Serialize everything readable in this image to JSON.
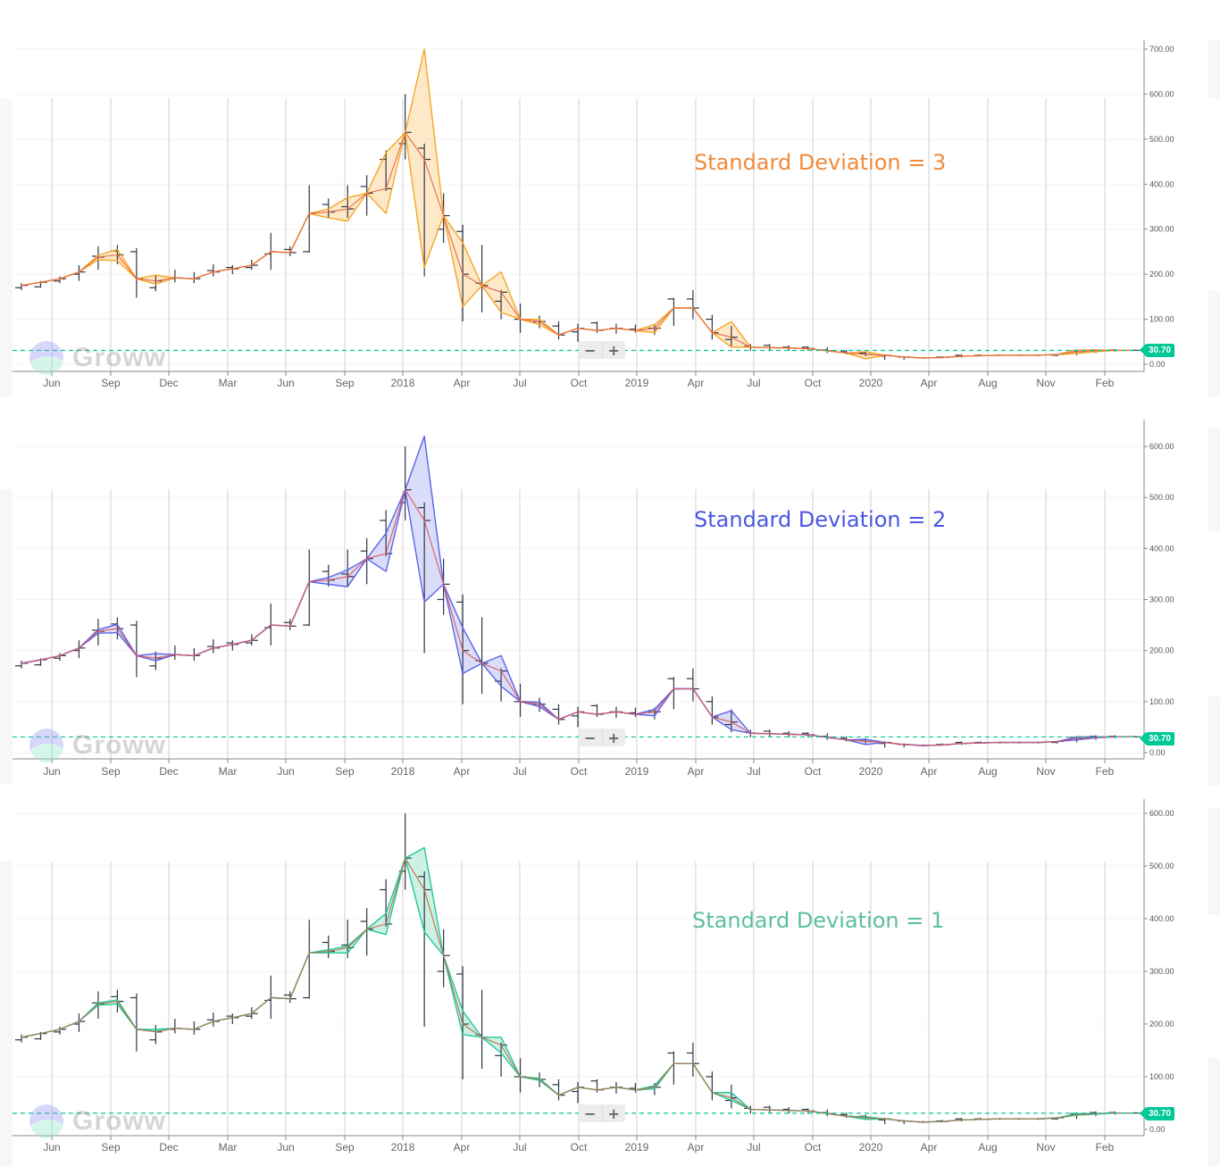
{
  "months_axis": [
    "Jun",
    "Sep",
    "Dec",
    "Mar",
    "Jun",
    "Sep",
    "2018",
    "Apr",
    "Jul",
    "Oct",
    "2019",
    "Apr",
    "Jul",
    "Oct",
    "2020",
    "Apr",
    "Aug",
    "Nov",
    "Feb"
  ],
  "watermark": "Groww",
  "zoom_controls": {
    "minus": "−",
    "plus": "+"
  },
  "current_price_label": "30.70",
  "colors": {
    "sd3": "#f5a623",
    "sd3_fill": "#fde7c2",
    "sd3_mid": "#e8684a",
    "sd3_text": "#f08a3a",
    "sd2": "#5a63e8",
    "sd2_fill": "#d6d9fa",
    "sd2_mid": "#e05a5a",
    "sd2_text": "#4a56e2",
    "sd1": "#1fc99a",
    "sd1_fill": "#c8f0e1",
    "sd1_mid": "#c0704a",
    "sd1_text": "#5cbf9c",
    "price_line": "#00c896",
    "ohlc": "#2f3445"
  },
  "panels": [
    {
      "label": "Standard Deviation = 3",
      "y_ticks": [
        "700.00",
        "600.00",
        "500.00",
        "400.00",
        "300.00",
        "200.00",
        "100.00",
        "0.00"
      ]
    },
    {
      "label": "Standard Deviation = 2",
      "y_ticks": [
        "600.00",
        "500.00",
        "400.00",
        "300.00",
        "200.00",
        "100.00",
        "0.00"
      ]
    },
    {
      "label": "Standard Deviation = 1",
      "y_ticks": [
        "600.00",
        "500.00",
        "400.00",
        "300.00",
        "200.00",
        "100.00",
        "0.00"
      ]
    }
  ],
  "chart_data": [
    {
      "type": "line",
      "title": "Standard Deviation = 3",
      "subtype": "bollinger-bands over monthly OHLC bars",
      "x": [
        "2016-05",
        "2016-06",
        "2016-07",
        "2016-08",
        "2016-09",
        "2016-10",
        "2016-11",
        "2016-12",
        "2017-01",
        "2017-02",
        "2017-03",
        "2017-04",
        "2017-05",
        "2017-06",
        "2017-07",
        "2017-08",
        "2017-09",
        "2017-10",
        "2017-11",
        "2017-12",
        "2018-01",
        "2018-02",
        "2018-03",
        "2018-04",
        "2018-05",
        "2018-06",
        "2018-07",
        "2018-08",
        "2018-09",
        "2018-10",
        "2018-11",
        "2018-12",
        "2019-01",
        "2019-02",
        "2019-03",
        "2019-04",
        "2019-05",
        "2019-06",
        "2019-07",
        "2019-08",
        "2019-09",
        "2019-10",
        "2019-11",
        "2019-12",
        "2020-01",
        "2020-02",
        "2020-03",
        "2020-04",
        "2020-05",
        "2020-06",
        "2020-07",
        "2020-08",
        "2020-09",
        "2020-10",
        "2020-11",
        "2020-12",
        "2021-01",
        "2021-02",
        "2021-03"
      ],
      "series": [
        {
          "name": "Middle (SMA)",
          "values": [
            175,
            182,
            190,
            205,
            238,
            243,
            190,
            185,
            192,
            190,
            205,
            212,
            220,
            250,
            248,
            335,
            338,
            345,
            380,
            390,
            515,
            455,
            330,
            200,
            175,
            160,
            100,
            95,
            65,
            80,
            75,
            80,
            75,
            80,
            125,
            125,
            70,
            60,
            38,
            37,
            36,
            35,
            30,
            25,
            22,
            20,
            16,
            14,
            15,
            18,
            19,
            20,
            20,
            20,
            22,
            28,
            30,
            31,
            31
          ]
        },
        {
          "name": "Upper Band",
          "values": [
            175,
            182,
            190,
            205,
            242,
            255,
            190,
            198,
            192,
            190,
            205,
            212,
            220,
            250,
            248,
            335,
            345,
            370,
            380,
            470,
            515,
            700,
            330,
            270,
            175,
            205,
            100,
            100,
            65,
            80,
            75,
            80,
            75,
            88,
            125,
            125,
            70,
            95,
            38,
            37,
            36,
            35,
            30,
            25,
            28,
            20,
            16,
            14,
            15,
            18,
            19,
            20,
            20,
            20,
            22,
            32,
            32,
            31,
            31
          ]
        },
        {
          "name": "Lower Band",
          "values": [
            175,
            182,
            190,
            205,
            232,
            230,
            190,
            178,
            192,
            190,
            205,
            212,
            220,
            250,
            248,
            335,
            325,
            318,
            380,
            335,
            515,
            215,
            330,
            128,
            175,
            115,
            100,
            88,
            65,
            80,
            75,
            80,
            75,
            70,
            125,
            125,
            70,
            38,
            38,
            37,
            36,
            35,
            30,
            25,
            12,
            20,
            16,
            14,
            15,
            18,
            19,
            20,
            20,
            20,
            22,
            24,
            28,
            31,
            31
          ]
        }
      ],
      "current_price": 30.7,
      "xlabel": "",
      "ylabel": "",
      "ylim": [
        0,
        700
      ],
      "grid": true,
      "legend": "none"
    },
    {
      "type": "line",
      "title": "Standard Deviation = 2",
      "subtype": "bollinger-bands over monthly OHLC bars",
      "x": "same as panel 1",
      "series": [
        {
          "name": "Middle (SMA)",
          "values": [
            175,
            182,
            190,
            205,
            238,
            243,
            190,
            185,
            192,
            190,
            205,
            212,
            220,
            250,
            248,
            335,
            338,
            345,
            380,
            390,
            515,
            455,
            330,
            200,
            175,
            160,
            100,
            95,
            65,
            80,
            75,
            80,
            75,
            80,
            125,
            125,
            70,
            60,
            38,
            37,
            36,
            35,
            30,
            25,
            22,
            20,
            16,
            14,
            15,
            18,
            19,
            20,
            20,
            20,
            22,
            28,
            30,
            31,
            31
          ]
        },
        {
          "name": "Upper Band",
          "values": [
            175,
            182,
            190,
            205,
            241,
            251,
            190,
            194,
            192,
            190,
            205,
            212,
            220,
            250,
            248,
            335,
            343,
            358,
            380,
            430,
            515,
            620,
            330,
            245,
            175,
            190,
            100,
            99,
            65,
            80,
            75,
            80,
            75,
            85,
            125,
            125,
            70,
            82,
            38,
            37,
            36,
            35,
            30,
            25,
            26,
            20,
            16,
            14,
            15,
            18,
            19,
            20,
            20,
            20,
            22,
            31,
            31,
            31,
            31
          ]
        },
        {
          "name": "Lower Band",
          "values": [
            175,
            182,
            190,
            205,
            234,
            235,
            190,
            180,
            192,
            190,
            205,
            212,
            220,
            250,
            248,
            335,
            330,
            325,
            380,
            355,
            515,
            295,
            330,
            155,
            175,
            130,
            100,
            90,
            65,
            80,
            75,
            80,
            75,
            72,
            125,
            125,
            70,
            45,
            38,
            37,
            36,
            35,
            30,
            25,
            16,
            20,
            16,
            14,
            15,
            18,
            19,
            20,
            20,
            20,
            22,
            25,
            29,
            31,
            31
          ]
        }
      ],
      "current_price": 30.7,
      "xlabel": "",
      "ylabel": "",
      "ylim": [
        0,
        600
      ],
      "grid": true,
      "legend": "none"
    },
    {
      "type": "line",
      "title": "Standard Deviation = 1",
      "subtype": "bollinger-bands over monthly OHLC bars",
      "x": "same as panel 1",
      "series": [
        {
          "name": "Middle (SMA)",
          "values": [
            175,
            182,
            190,
            205,
            238,
            243,
            190,
            185,
            192,
            190,
            205,
            212,
            220,
            250,
            248,
            335,
            338,
            345,
            380,
            390,
            515,
            455,
            330,
            200,
            175,
            160,
            100,
            95,
            65,
            80,
            75,
            80,
            75,
            80,
            125,
            125,
            70,
            60,
            38,
            37,
            36,
            35,
            30,
            25,
            22,
            20,
            16,
            14,
            15,
            18,
            19,
            20,
            20,
            20,
            22,
            28,
            30,
            31,
            31
          ]
        },
        {
          "name": "Upper Band",
          "values": [
            175,
            182,
            190,
            205,
            240,
            246,
            190,
            190,
            192,
            190,
            205,
            212,
            220,
            250,
            248,
            335,
            341,
            348,
            380,
            410,
            515,
            535,
            330,
            225,
            175,
            175,
            100,
            97,
            65,
            80,
            75,
            80,
            75,
            83,
            125,
            125,
            70,
            70,
            38,
            37,
            36,
            35,
            30,
            25,
            24,
            20,
            16,
            14,
            15,
            18,
            19,
            20,
            20,
            20,
            22,
            30,
            30,
            31,
            31
          ]
        },
        {
          "name": "Lower Band",
          "values": [
            175,
            182,
            190,
            205,
            236,
            238,
            190,
            186,
            192,
            190,
            205,
            212,
            220,
            250,
            248,
            335,
            335,
            335,
            380,
            370,
            515,
            375,
            330,
            180,
            175,
            145,
            100,
            93,
            65,
            80,
            75,
            80,
            75,
            77,
            125,
            125,
            70,
            55,
            38,
            37,
            36,
            35,
            30,
            25,
            19,
            20,
            16,
            14,
            15,
            18,
            19,
            20,
            20,
            20,
            22,
            27,
            29,
            31,
            31
          ]
        }
      ],
      "current_price": 30.7,
      "xlabel": "",
      "ylabel": "",
      "ylim": [
        0,
        600
      ],
      "grid": true,
      "legend": "none"
    }
  ],
  "ohlc": [
    [
      180,
      165,
      170,
      175
    ],
    [
      185,
      170,
      172,
      182
    ],
    [
      195,
      180,
      185,
      190
    ],
    [
      220,
      185,
      200,
      205
    ],
    [
      262,
      210,
      240,
      238
    ],
    [
      265,
      222,
      252,
      243
    ],
    [
      258,
      148,
      250,
      190
    ],
    [
      198,
      162,
      170,
      185
    ],
    [
      210,
      182,
      190,
      192
    ],
    [
      205,
      180,
      190,
      190
    ],
    [
      222,
      195,
      208,
      205
    ],
    [
      220,
      200,
      215,
      212
    ],
    [
      232,
      210,
      215,
      220
    ],
    [
      292,
      210,
      245,
      250
    ],
    [
      262,
      240,
      255,
      248
    ],
    [
      398,
      248,
      250,
      335
    ],
    [
      368,
      325,
      355,
      338
    ],
    [
      398,
      325,
      350,
      345
    ],
    [
      420,
      330,
      395,
      380
    ],
    [
      475,
      385,
      455,
      390
    ],
    [
      600,
      455,
      490,
      515
    ],
    [
      490,
      195,
      480,
      455
    ],
    [
      380,
      270,
      300,
      330
    ],
    [
      310,
      95,
      295,
      200
    ],
    [
      265,
      115,
      180,
      175
    ],
    [
      165,
      100,
      140,
      160
    ],
    [
      135,
      70,
      100,
      100
    ],
    [
      108,
      80,
      95,
      95
    ],
    [
      95,
      55,
      85,
      65
    ],
    [
      90,
      50,
      72,
      80
    ],
    [
      95,
      70,
      92,
      75
    ],
    [
      90,
      68,
      80,
      80
    ],
    [
      88,
      70,
      78,
      75
    ],
    [
      88,
      65,
      80,
      80
    ],
    [
      148,
      85,
      145,
      125
    ],
    [
      165,
      100,
      145,
      125
    ],
    [
      110,
      55,
      100,
      70
    ],
    [
      85,
      40,
      55,
      60
    ],
    [
      45,
      30,
      40,
      38
    ],
    [
      45,
      30,
      42,
      37
    ],
    [
      42,
      30,
      38,
      36
    ],
    [
      40,
      30,
      38,
      35
    ],
    [
      38,
      25,
      32,
      30
    ],
    [
      32,
      22,
      28,
      25
    ],
    [
      28,
      18,
      25,
      22
    ],
    [
      22,
      10,
      18,
      20
    ],
    [
      18,
      10,
      16,
      16
    ],
    [
      16,
      12,
      14,
      14
    ],
    [
      18,
      14,
      16,
      15
    ],
    [
      22,
      15,
      20,
      18
    ],
    [
      22,
      18,
      20,
      19
    ],
    [
      22,
      18,
      20,
      20
    ],
    [
      22,
      18,
      20,
      20
    ],
    [
      22,
      18,
      20,
      20
    ],
    [
      22,
      18,
      20,
      22
    ],
    [
      32,
      20,
      30,
      28
    ],
    [
      34,
      25,
      32,
      30
    ],
    [
      34,
      28,
      32,
      31
    ],
    [
      33,
      30,
      31,
      31
    ]
  ]
}
